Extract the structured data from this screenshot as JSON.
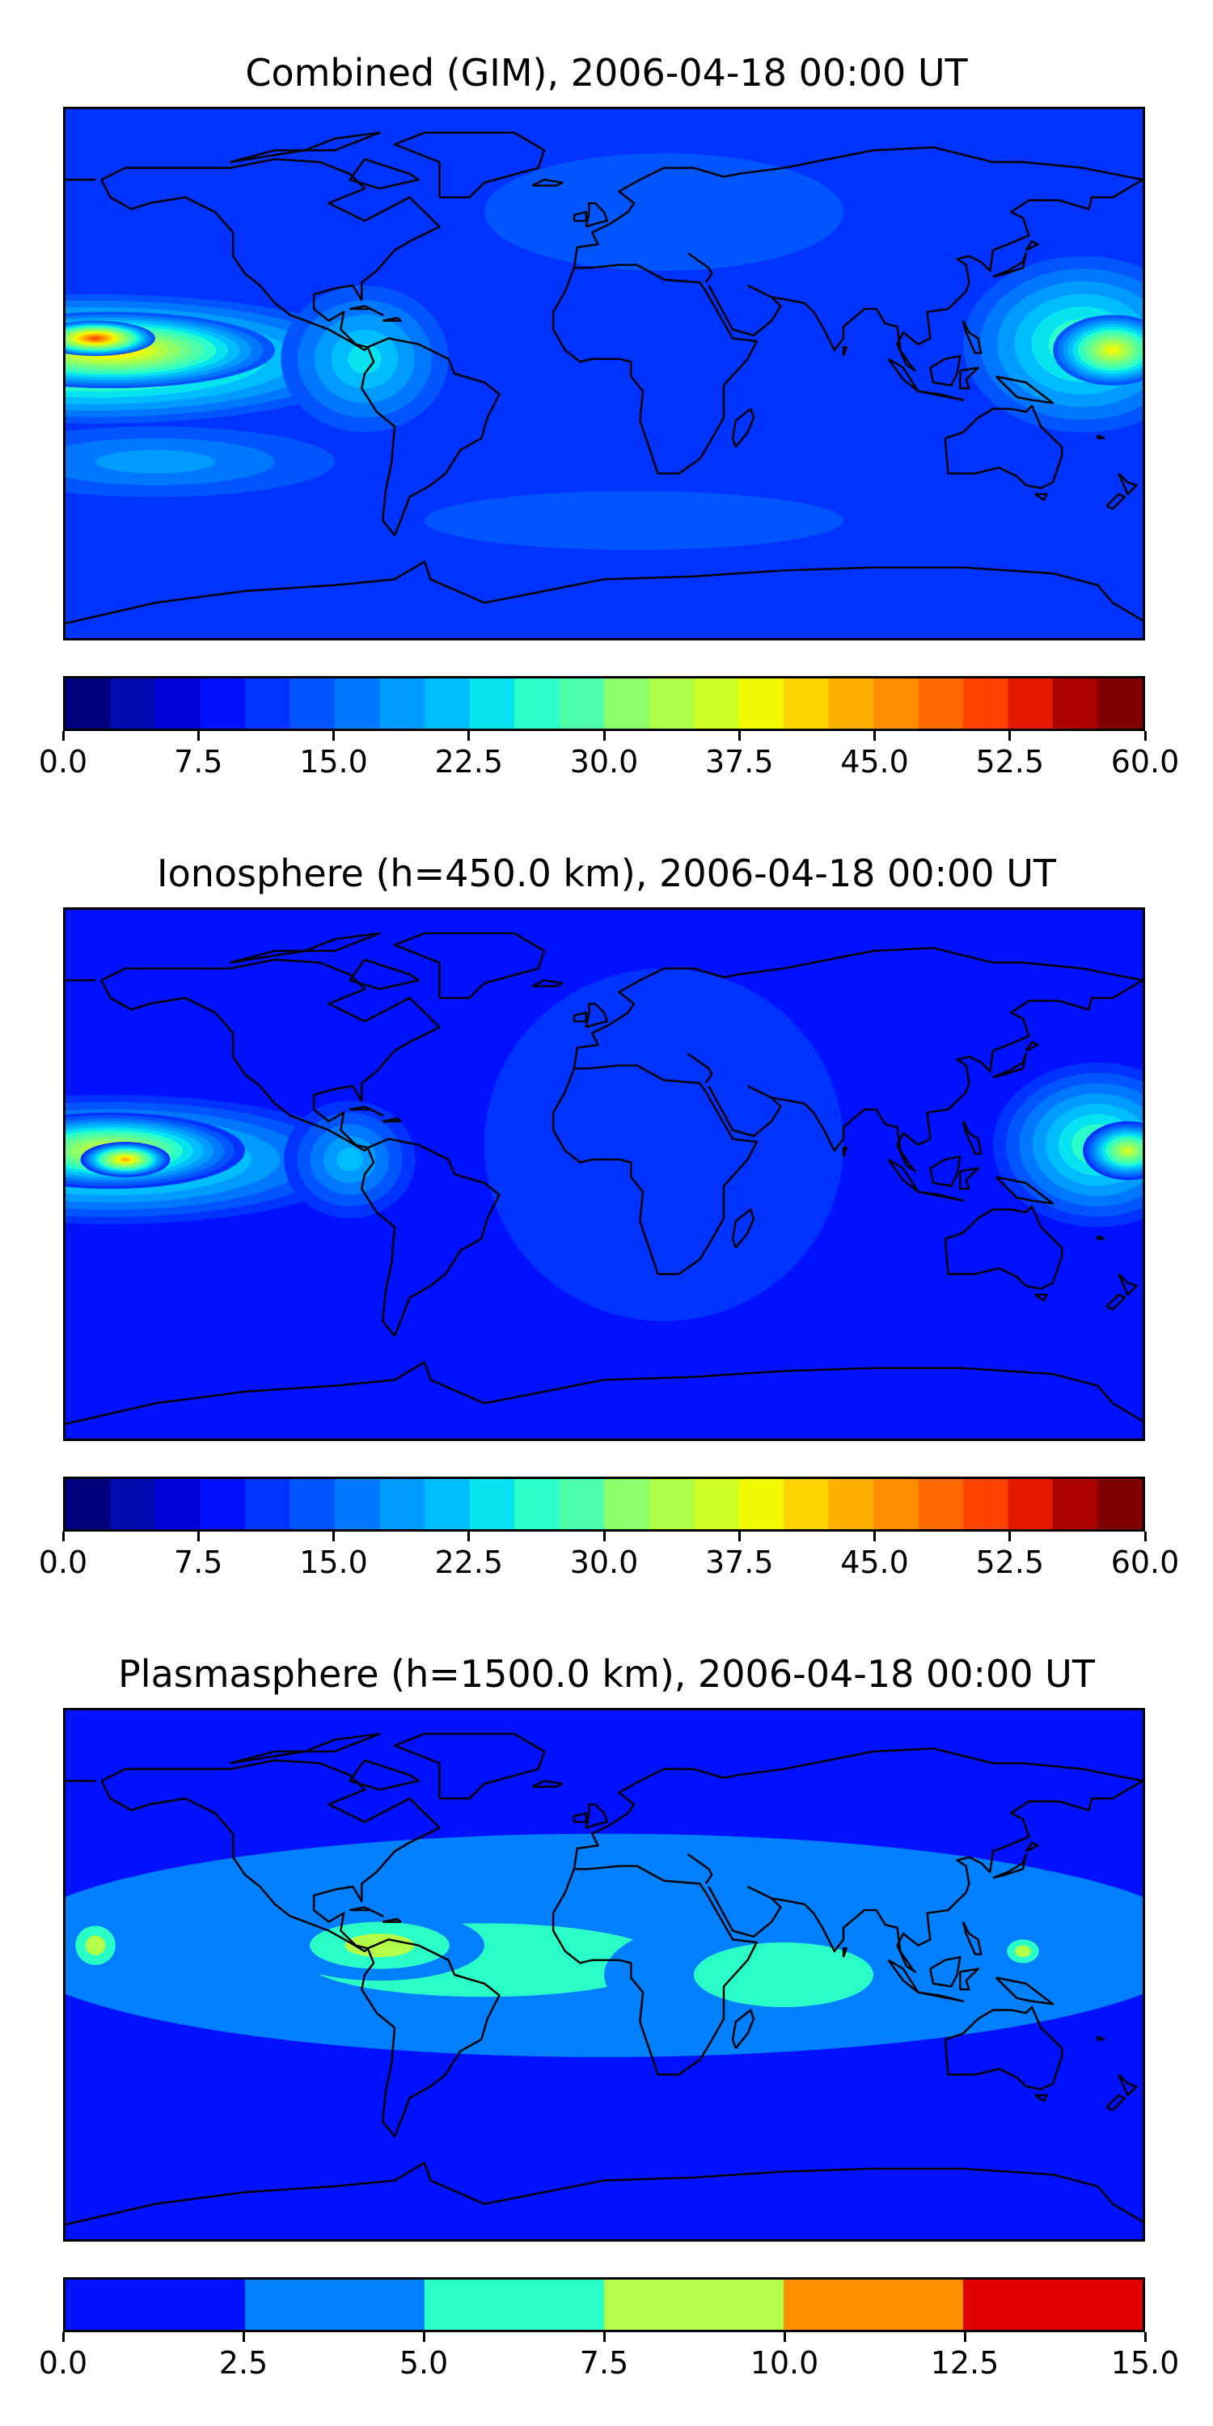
{
  "panels": [
    {
      "title": "Combined (GIM), 2006-04-18 00:00 UT",
      "colorbar": {
        "vmin": 0,
        "vmax": 60,
        "levels": 24,
        "colors": [
          "#00007f",
          "#000cb0",
          "#0000d8",
          "#0011ff",
          "#0033ff",
          "#0055ff",
          "#0077ff",
          "#009bff",
          "#00bdff",
          "#07e3ef",
          "#2bffca",
          "#4dffa9",
          "#6bff8b",
          "#8dff69",
          "#adff49",
          "#cfff27",
          "#f2fa04",
          "#ffd300",
          "#ffb100",
          "#ff8d00",
          "#ff6a00",
          "#ff4200",
          "#e31a00",
          "#ab0000",
          "#7f0000"
        ],
        "ticks": [
          "0.0",
          "7.5",
          "15.0",
          "22.5",
          "30.0",
          "37.5",
          "45.0",
          "52.5",
          "60.0"
        ]
      },
      "field": {
        "background_level": 4,
        "blobs": [
          {
            "lon": -170,
            "lat": 5,
            "rx": 95,
            "ry": 22,
            "level": 14
          },
          {
            "lon": -165,
            "lat": 8,
            "rx": 55,
            "ry": 13,
            "level": 18
          },
          {
            "lon": -170,
            "lat": 12,
            "rx": 20,
            "ry": 6,
            "level": 21
          },
          {
            "lon": -80,
            "lat": 5,
            "rx": 28,
            "ry": 25,
            "level": 9
          },
          {
            "lon": 160,
            "lat": 10,
            "rx": 40,
            "ry": 30,
            "level": 11
          },
          {
            "lon": 170,
            "lat": 8,
            "rx": 20,
            "ry": 12,
            "level": 16
          },
          {
            "lon": -150,
            "lat": -30,
            "rx": 60,
            "ry": 12,
            "level": 7
          },
          {
            "lon": 20,
            "lat": 55,
            "rx": 60,
            "ry": 20,
            "level": 2
          },
          {
            "lon": 10,
            "lat": -50,
            "rx": 70,
            "ry": 10,
            "level": 2
          }
        ]
      }
    },
    {
      "title": "Ionosphere  (h=450.0 km), 2006-04-18 00:00 UT",
      "colorbar": {
        "vmin": 0,
        "vmax": 60,
        "levels": 24,
        "colors": [
          "#00007f",
          "#000cb0",
          "#0000d8",
          "#0011ff",
          "#0033ff",
          "#0055ff",
          "#0077ff",
          "#009bff",
          "#00bdff",
          "#07e3ef",
          "#2bffca",
          "#4dffa9",
          "#6bff8b",
          "#8dff69",
          "#adff49",
          "#cfff27",
          "#f2fa04",
          "#ffd300",
          "#ffb100",
          "#ff8d00",
          "#ff6a00",
          "#ff4200",
          "#e31a00",
          "#ab0000",
          "#7f0000"
        ],
        "ticks": [
          "0.0",
          "7.5",
          "15.0",
          "22.5",
          "30.0",
          "37.5",
          "45.0",
          "52.5",
          "60.0"
        ]
      },
      "field": {
        "background_level": 3,
        "blobs": [
          {
            "lon": -165,
            "lat": 5,
            "rx": 85,
            "ry": 22,
            "level": 12
          },
          {
            "lon": -165,
            "lat": 8,
            "rx": 45,
            "ry": 13,
            "level": 16
          },
          {
            "lon": -160,
            "lat": 5,
            "rx": 15,
            "ry": 6,
            "level": 18
          },
          {
            "lon": -85,
            "lat": 5,
            "rx": 22,
            "ry": 20,
            "level": 8
          },
          {
            "lon": 165,
            "lat": 10,
            "rx": 35,
            "ry": 28,
            "level": 11
          },
          {
            "lon": 175,
            "lat": 8,
            "rx": 15,
            "ry": 10,
            "level": 15
          },
          {
            "lon": 20,
            "lat": 10,
            "rx": 60,
            "ry": 60,
            "level": 1
          }
        ]
      }
    },
    {
      "title": "Plasmasphere (h=1500.0 km), 2006-04-18 00:00 UT",
      "colorbar": {
        "vmin": 0,
        "vmax": 15,
        "levels": 6,
        "colors": [
          "#0011ff",
          "#0080ff",
          "#2bffc8",
          "#b3ff4a",
          "#ff9000",
          "#e00000"
        ],
        "ticks": [
          "0.0",
          "2.5",
          "5.0",
          "7.5",
          "10.0",
          "12.5",
          "15.0"
        ]
      },
      "field": {
        "background_level": 0,
        "blobs": [
          {
            "lon": 0,
            "lat": 10,
            "rx": 200,
            "ry": 38,
            "level": 1
          },
          {
            "lon": -40,
            "lat": 5,
            "rx": 120,
            "ry": 25,
            "level": 2
          },
          {
            "lon": 60,
            "lat": 0,
            "rx": 60,
            "ry": 22,
            "level": 2
          },
          {
            "lon": -75,
            "lat": 10,
            "rx": 35,
            "ry": 12,
            "level": 3
          },
          {
            "lon": -170,
            "lat": 10,
            "rx": 10,
            "ry": 10,
            "level": 3
          },
          {
            "lon": 140,
            "lat": 8,
            "rx": 8,
            "ry": 6,
            "level": 3
          }
        ]
      }
    }
  ]
}
